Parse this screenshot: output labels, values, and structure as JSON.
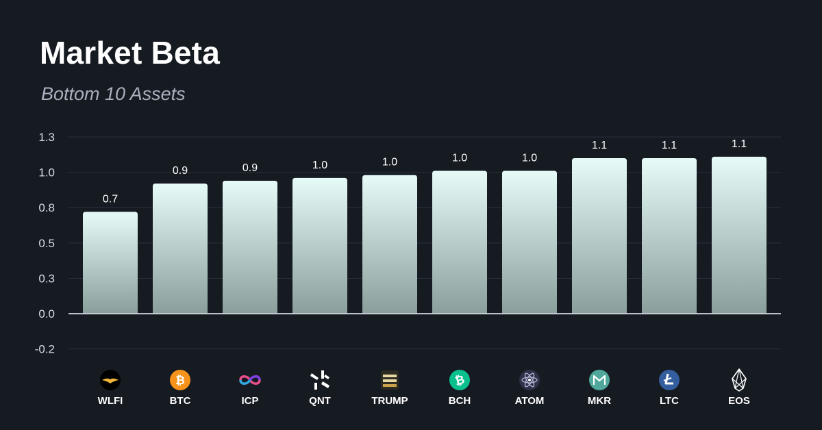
{
  "title": "Market Beta",
  "subtitle": "Bottom 10 Assets",
  "colors": {
    "background": "#161b22",
    "bar_top": "#e6fbf8",
    "bar_bottom": "#8a9f9b",
    "grid": "#2a313b",
    "zero_line": "#c9ced6"
  },
  "chart_data": {
    "type": "bar",
    "title": "Market Beta",
    "subtitle": "Bottom 10 Assets",
    "xlabel": "",
    "ylabel": "",
    "ylim": [
      -0.25,
      1.3
    ],
    "y_ticks": [
      1.3,
      1.05,
      0.8,
      0.55,
      0.3,
      0.05,
      -0.2
    ],
    "y_tick_labels": [
      "1.3",
      "1.0",
      "0.8",
      "0.5",
      "0.3",
      "0.0",
      "-0.2"
    ],
    "grid": true,
    "categories": [
      "WLFI",
      "BTC",
      "ICP",
      "QNT",
      "TRUMP",
      "BCH",
      "ATOM",
      "MKR",
      "LTC",
      "EOS"
    ],
    "values": [
      0.72,
      0.92,
      0.94,
      0.96,
      0.98,
      1.01,
      1.01,
      1.1,
      1.1,
      1.11
    ],
    "data_labels": [
      "0.7",
      "0.9",
      "0.9",
      "1.0",
      "1.0",
      "1.0",
      "1.0",
      "1.1",
      "1.1",
      "1.1"
    ],
    "icons": [
      "wlfi-icon",
      "btc-icon",
      "icp-icon",
      "qnt-icon",
      "trump-icon",
      "bch-icon",
      "atom-icon",
      "mkr-icon",
      "ltc-icon",
      "eos-icon"
    ]
  }
}
